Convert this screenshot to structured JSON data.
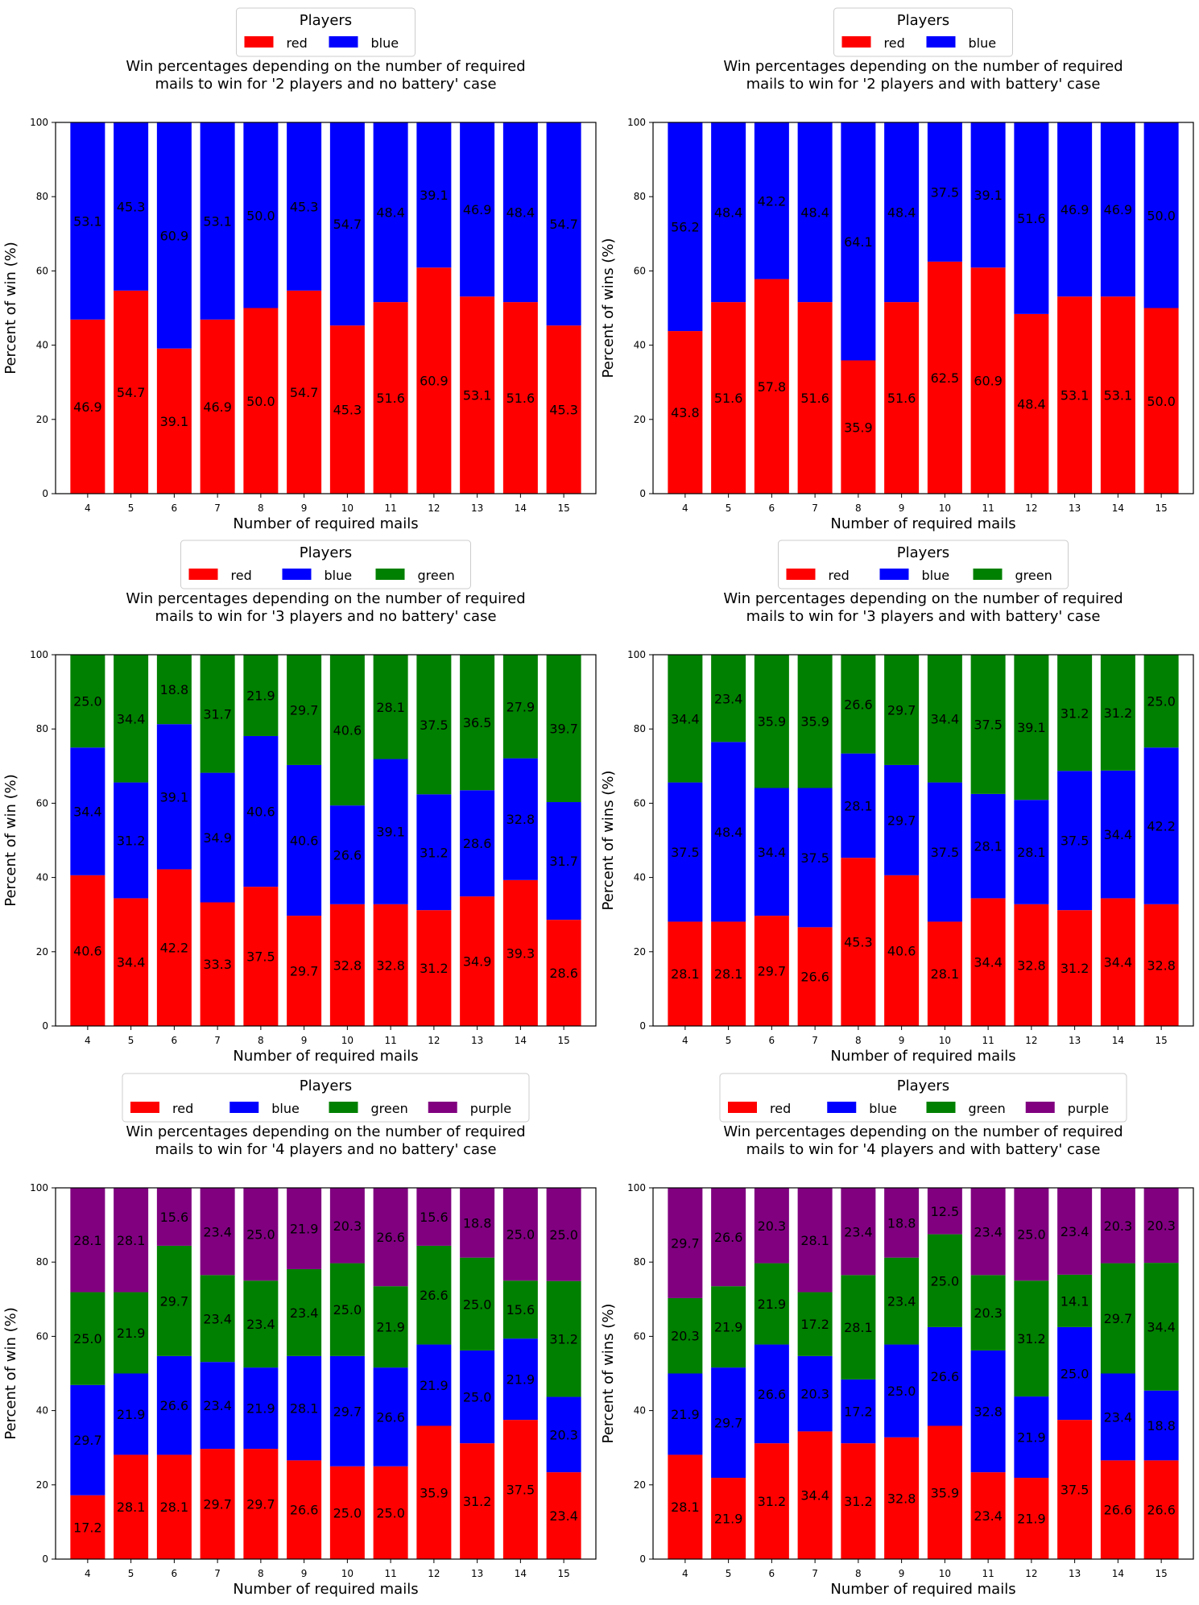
{
  "legend_title": "Players",
  "colors": {
    "red": "#ff0000",
    "blue": "#0000ff",
    "green": "#008000",
    "purple": "#800080"
  },
  "chart_data": [
    {
      "type": "bar",
      "stacked": true,
      "title": "Win percentages depending on the number of required\nmails to win for '2 players and no battery' case",
      "xlabel": "Number of required mails",
      "ylabel": "Percent of win (%)",
      "ylim": [
        0,
        100
      ],
      "yticks": [
        0,
        20,
        40,
        60,
        80,
        100
      ],
      "legend_placement": "top-center",
      "categories": [
        "4",
        "5",
        "6",
        "7",
        "8",
        "9",
        "10",
        "11",
        "12",
        "13",
        "14",
        "15"
      ],
      "series": [
        {
          "name": "red",
          "color": "#ff0000",
          "values": [
            46.9,
            54.7,
            39.1,
            46.9,
            50.0,
            54.7,
            45.3,
            51.6,
            60.9,
            53.1,
            51.6,
            45.3
          ]
        },
        {
          "name": "blue",
          "color": "#0000ff",
          "values": [
            53.1,
            45.3,
            60.9,
            53.1,
            50.0,
            45.3,
            54.7,
            48.4,
            39.1,
            46.9,
            48.4,
            54.7
          ]
        }
      ]
    },
    {
      "type": "bar",
      "stacked": true,
      "title": "Win percentages depending on the number of required\nmails to win for '2 players and with battery' case",
      "xlabel": "Number of required mails",
      "ylabel": "Percent of wins (%)",
      "ylim": [
        0,
        100
      ],
      "yticks": [
        0,
        20,
        40,
        60,
        80,
        100
      ],
      "legend_placement": "top-center",
      "categories": [
        "4",
        "5",
        "6",
        "7",
        "8",
        "9",
        "10",
        "11",
        "12",
        "13",
        "14",
        "15"
      ],
      "series": [
        {
          "name": "red",
          "color": "#ff0000",
          "values": [
            43.8,
            51.6,
            57.8,
            51.6,
            35.9,
            51.6,
            62.5,
            60.9,
            48.4,
            53.1,
            53.1,
            50.0
          ]
        },
        {
          "name": "blue",
          "color": "#0000ff",
          "values": [
            56.2,
            48.4,
            42.2,
            48.4,
            64.1,
            48.4,
            37.5,
            39.1,
            51.6,
            46.9,
            46.9,
            50.0
          ]
        }
      ]
    },
    {
      "type": "bar",
      "stacked": true,
      "title": "Win percentages depending on the number of required\nmails to win for '3 players and no battery' case",
      "xlabel": "Number of required mails",
      "ylabel": "Percent of win (%)",
      "ylim": [
        0,
        100
      ],
      "yticks": [
        0,
        20,
        40,
        60,
        80,
        100
      ],
      "legend_placement": "top-center",
      "categories": [
        "4",
        "5",
        "6",
        "7",
        "8",
        "9",
        "10",
        "11",
        "12",
        "13",
        "14",
        "15"
      ],
      "series": [
        {
          "name": "red",
          "color": "#ff0000",
          "values": [
            40.6,
            34.4,
            42.2,
            33.3,
            37.5,
            29.7,
            32.8,
            32.8,
            31.2,
            34.9,
            39.3,
            28.6
          ]
        },
        {
          "name": "blue",
          "color": "#0000ff",
          "values": [
            34.4,
            31.2,
            39.1,
            34.9,
            40.6,
            40.6,
            26.6,
            39.1,
            31.2,
            28.6,
            32.8,
            31.7
          ]
        },
        {
          "name": "green",
          "color": "#008000",
          "values": [
            25.0,
            34.4,
            18.8,
            31.7,
            21.9,
            29.7,
            40.6,
            28.1,
            37.5,
            36.5,
            27.9,
            39.7
          ]
        }
      ]
    },
    {
      "type": "bar",
      "stacked": true,
      "title": "Win percentages depending on the number of required\nmails to win for '3 players and with battery' case",
      "xlabel": "Number of required mails",
      "ylabel": "Percent of wins (%)",
      "ylim": [
        0,
        100
      ],
      "yticks": [
        0,
        20,
        40,
        60,
        80,
        100
      ],
      "legend_placement": "top-center",
      "categories": [
        "4",
        "5",
        "6",
        "7",
        "8",
        "9",
        "10",
        "11",
        "12",
        "13",
        "14",
        "15"
      ],
      "series": [
        {
          "name": "red",
          "color": "#ff0000",
          "values": [
            28.1,
            28.1,
            29.7,
            26.6,
            45.3,
            40.6,
            28.1,
            34.4,
            32.8,
            31.2,
            34.4,
            32.8
          ]
        },
        {
          "name": "blue",
          "color": "#0000ff",
          "values": [
            37.5,
            48.4,
            34.4,
            37.5,
            28.1,
            29.7,
            37.5,
            28.1,
            28.1,
            37.5,
            34.4,
            42.2
          ]
        },
        {
          "name": "green",
          "color": "#008000",
          "values": [
            34.4,
            23.4,
            35.9,
            35.9,
            26.6,
            29.7,
            34.4,
            37.5,
            39.1,
            31.2,
            31.2,
            25.0
          ]
        }
      ]
    },
    {
      "type": "bar",
      "stacked": true,
      "title": "Win percentages depending on the number of required\nmails to win for '4 players and no battery' case",
      "xlabel": "Number of required mails",
      "ylabel": "Percent of win (%)",
      "ylim": [
        0,
        100
      ],
      "yticks": [
        0,
        20,
        40,
        60,
        80,
        100
      ],
      "legend_placement": "top-center",
      "categories": [
        "4",
        "5",
        "6",
        "7",
        "8",
        "9",
        "10",
        "11",
        "12",
        "13",
        "14",
        "15"
      ],
      "series": [
        {
          "name": "red",
          "color": "#ff0000",
          "values": [
            17.2,
            28.1,
            28.1,
            29.7,
            29.7,
            26.6,
            25.0,
            25.0,
            35.9,
            31.2,
            37.5,
            23.4
          ]
        },
        {
          "name": "blue",
          "color": "#0000ff",
          "values": [
            29.7,
            21.9,
            26.6,
            23.4,
            21.9,
            28.1,
            29.7,
            26.6,
            21.9,
            25.0,
            21.9,
            20.3
          ]
        },
        {
          "name": "green",
          "color": "#008000",
          "values": [
            25.0,
            21.9,
            29.7,
            23.4,
            23.4,
            23.4,
            25.0,
            21.9,
            26.6,
            25.0,
            15.6,
            31.2
          ]
        },
        {
          "name": "purple",
          "color": "#800080",
          "values": [
            28.1,
            28.1,
            15.6,
            23.4,
            25.0,
            21.9,
            20.3,
            26.6,
            15.6,
            18.8,
            25.0,
            25.0
          ]
        }
      ]
    },
    {
      "type": "bar",
      "stacked": true,
      "title": "Win percentages depending on the number of required\nmails to win for '4 players and with battery' case",
      "xlabel": "Number of required mails",
      "ylabel": "Percent of wins (%)",
      "ylim": [
        0,
        100
      ],
      "yticks": [
        0,
        20,
        40,
        60,
        80,
        100
      ],
      "legend_placement": "top-center",
      "categories": [
        "4",
        "5",
        "6",
        "7",
        "8",
        "9",
        "10",
        "11",
        "12",
        "13",
        "14",
        "15"
      ],
      "series": [
        {
          "name": "red",
          "color": "#ff0000",
          "values": [
            28.1,
            21.9,
            31.2,
            34.4,
            31.2,
            32.8,
            35.9,
            23.4,
            21.9,
            37.5,
            26.6,
            26.6
          ]
        },
        {
          "name": "blue",
          "color": "#0000ff",
          "values": [
            21.9,
            29.7,
            26.6,
            20.3,
            17.2,
            25.0,
            26.6,
            32.8,
            21.9,
            25.0,
            23.4,
            18.8
          ]
        },
        {
          "name": "green",
          "color": "#008000",
          "values": [
            20.3,
            21.9,
            21.9,
            17.2,
            28.1,
            23.4,
            25.0,
            20.3,
            31.2,
            14.1,
            29.7,
            34.4
          ]
        },
        {
          "name": "purple",
          "color": "#800080",
          "values": [
            29.7,
            26.6,
            20.3,
            28.1,
            23.4,
            18.8,
            12.5,
            23.4,
            25.0,
            23.4,
            20.3,
            20.3
          ]
        }
      ]
    }
  ]
}
